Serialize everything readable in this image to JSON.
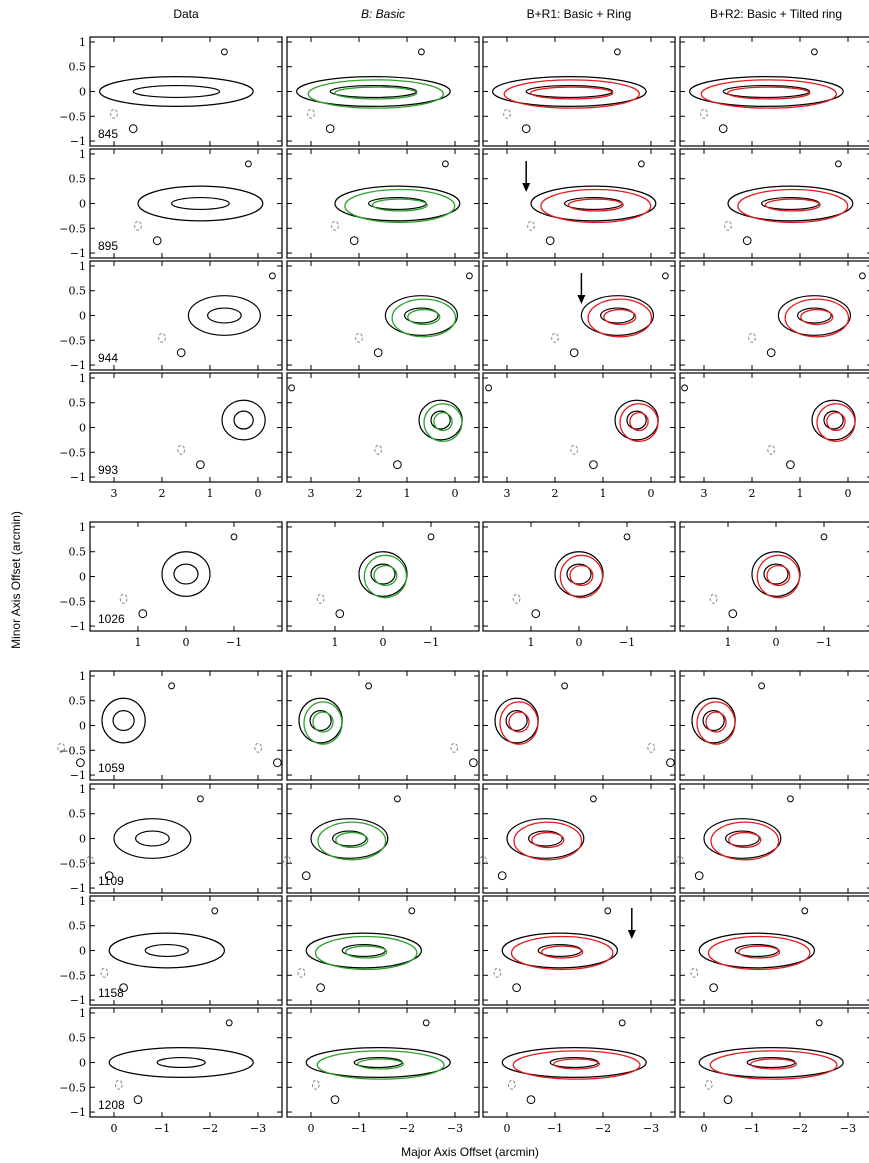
{
  "chart_data": {
    "type": "contour",
    "column_titles": [
      "Data",
      "B: Basic",
      "B+R1: Basic + Ring",
      "B+R2: Basic + Tilted ring"
    ],
    "xlabel": "Major Axis Offset (arcmin)",
    "ylabel": "Minor Axis Offset (arcmin)",
    "yticks": [
      "1",
      "0.5",
      "0",
      "−0.5",
      "−1"
    ],
    "ylim": [
      -1.1,
      1.1
    ],
    "groups": [
      {
        "velocities": [
          "845",
          "895",
          "944",
          "993"
        ],
        "xlim": [
          3.5,
          -0.5
        ],
        "xticks": [
          "3",
          "2",
          "1",
          "0"
        ]
      },
      {
        "velocities": [
          "1026"
        ],
        "xlim": [
          2.0,
          -2.0
        ],
        "xticks": [
          "1",
          "0",
          "−1"
        ]
      },
      {
        "velocities": [
          "1059",
          "1109",
          "1158",
          "1208"
        ],
        "xlim": [
          0.5,
          -3.5
        ],
        "xticks": [
          "0",
          "−1",
          "−2",
          "−3"
        ]
      }
    ],
    "model_colors": {
      "Data": "#000000",
      "Basic": "#2ca02c",
      "Ring": "#e31a1c"
    },
    "negative_contour_color": "#888888",
    "arrows": [
      {
        "velocity": "895",
        "column": "B+R1: Basic + Ring",
        "x": 2.6
      },
      {
        "velocity": "944",
        "column": "B+R1: Basic + Ring",
        "x": 1.45
      },
      {
        "velocity": "1158",
        "column": "B+R1: Basic + Ring",
        "x": -2.6
      }
    ]
  }
}
